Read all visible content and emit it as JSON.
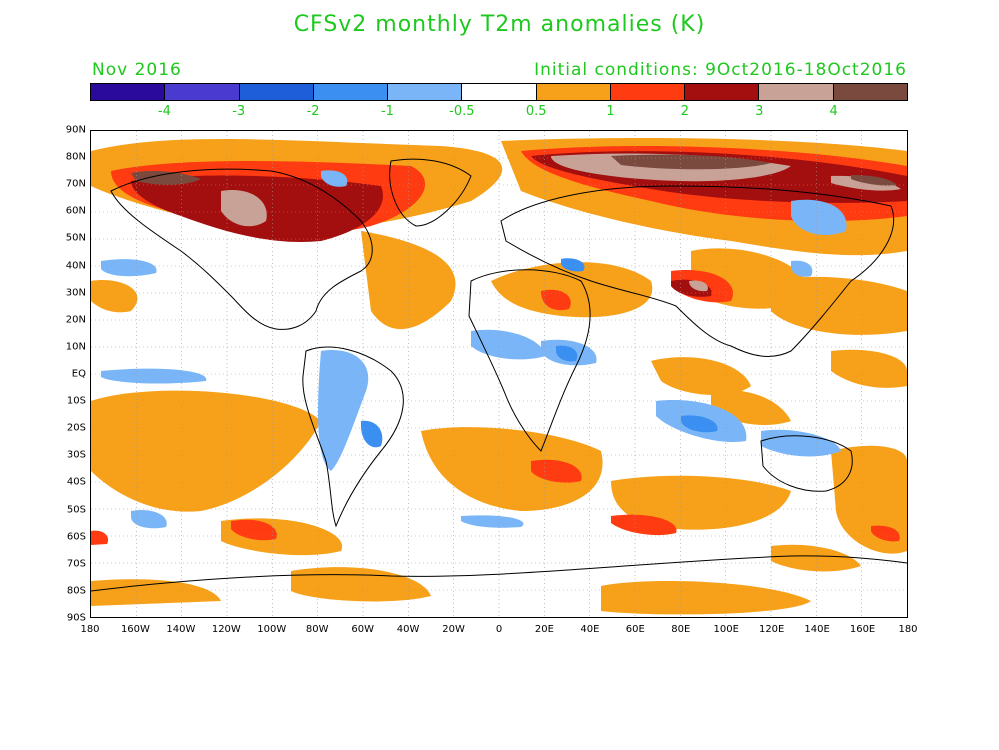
{
  "title": "CFSv2 monthly T2m anomalies (K)",
  "month_label": "Nov 2016",
  "initial_conditions": "Initial conditions: 9Oct2016-18Oct2016",
  "colorbar": {
    "colors": [
      "#2a0a9c",
      "#4a3ad0",
      "#1e5ed8",
      "#3a8ff0",
      "#7ab6f7",
      "#ffffff",
      "#f7a11a",
      "#ff3b12",
      "#a30e0e",
      "#c8a296",
      "#7a4a3e"
    ],
    "labels": [
      "-4",
      "-3",
      "-2",
      "-1",
      "-0.5",
      "0.5",
      "1",
      "2",
      "3",
      "4"
    ]
  },
  "lat_ticks": [
    "90N",
    "80N",
    "70N",
    "60N",
    "50N",
    "40N",
    "30N",
    "20N",
    "10N",
    "EQ",
    "10S",
    "20S",
    "30S",
    "40S",
    "50S",
    "60S",
    "70S",
    "80S",
    "90S"
  ],
  "lon_ticks": [
    "180",
    "160W",
    "140W",
    "120W",
    "100W",
    "80W",
    "60W",
    "40W",
    "20W",
    "0",
    "20E",
    "40E",
    "60E",
    "80E",
    "100E",
    "120E",
    "140E",
    "160E",
    "180"
  ],
  "colors": {
    "accent": "#1ec81e",
    "warm1": "#f7a11a",
    "warm2": "#ff3b12",
    "warm3": "#a30e0e",
    "warm4": "#c8a296",
    "warm5": "#7a4a3e",
    "cool1": "#7ab6f7",
    "cool2": "#3a8ff0",
    "cool3": "#1e5ed8"
  }
}
